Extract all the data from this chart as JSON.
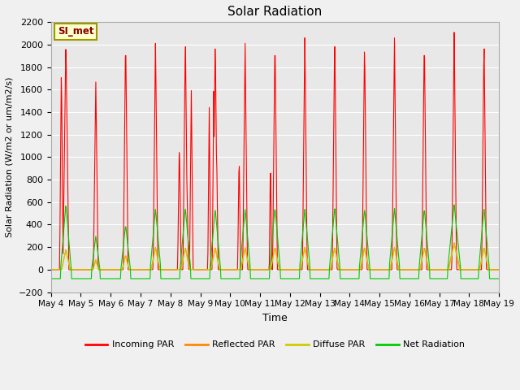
{
  "title": "Solar Radiation",
  "ylabel": "Solar Radiation (W/m2 or um/m2/s)",
  "xlabel": "Time",
  "ylim": [
    -200,
    2200
  ],
  "xlim": [
    0,
    15
  ],
  "bg_color": "#e8e8e8",
  "grid_color": "#ffffff",
  "fig_bg_color": "#f0f0f0",
  "annotation_text": "SI_met",
  "annotation_bg": "#ffffcc",
  "annotation_border": "#999900",
  "annotation_text_color": "#880000",
  "legend_entries": [
    "Incoming PAR",
    "Reflected PAR",
    "Diffuse PAR",
    "Net Radiation"
  ],
  "legend_colors": [
    "#ff0000",
    "#ff8800",
    "#cccc00",
    "#00cc00"
  ],
  "xtick_labels": [
    "May 4",
    "May 5",
    "May 6",
    "May 7",
    "May 8",
    "May 9",
    "May 10",
    "May 11",
    "May 12",
    "May 13",
    "May 14",
    "May 15",
    "May 16",
    "May 17",
    "May 18",
    "May 19"
  ],
  "yticks": [
    -200,
    0,
    200,
    400,
    600,
    800,
    1000,
    1200,
    1400,
    1600,
    1800,
    2000,
    2200
  ],
  "days": 15
}
